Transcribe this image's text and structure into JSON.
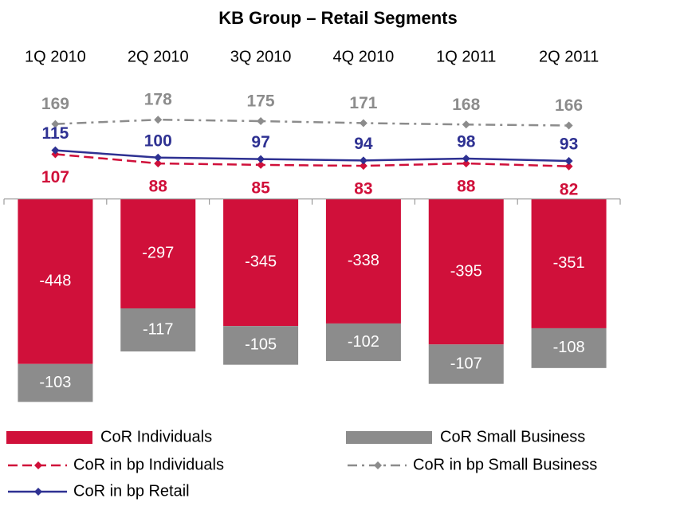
{
  "chart_data": {
    "type": "bar",
    "title": "KB Group – Retail Segments",
    "categories": [
      "1Q 2010",
      "2Q 2010",
      "3Q 2010",
      "4Q 2010",
      "1Q 2011",
      "2Q 2011"
    ],
    "ylim": [
      -600,
      350
    ],
    "y2lim": [
      -440,
      280
    ],
    "series": [
      {
        "name": "CoR Individuals",
        "type": "bar",
        "color": "#d0103a",
        "values": [
          -448,
          -297,
          -345,
          -338,
          -395,
          -351
        ]
      },
      {
        "name": "CoR Small Business",
        "type": "bar",
        "color": "#8c8c8c",
        "values": [
          -103,
          -117,
          -105,
          -102,
          -107,
          -108
        ]
      },
      {
        "name": "CoR in bp Individuals",
        "type": "line",
        "axis": "y2",
        "color": "#d0103a",
        "dash": "12,6",
        "values": [
          107,
          88,
          85,
          83,
          88,
          82
        ]
      },
      {
        "name": "CoR in bp Small Business",
        "type": "line",
        "axis": "y2",
        "color": "#8c8c8c",
        "dash": "12,6,3,6",
        "values": [
          169,
          178,
          175,
          171,
          168,
          166
        ]
      },
      {
        "name": "CoR in bp Retail",
        "type": "line",
        "axis": "y2",
        "color": "#2e3192",
        "values": [
          115,
          100,
          97,
          94,
          98,
          93
        ]
      }
    ]
  }
}
